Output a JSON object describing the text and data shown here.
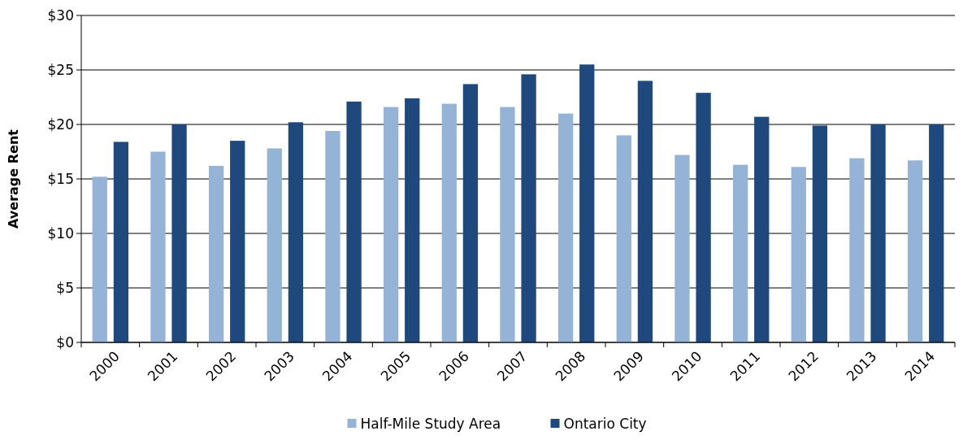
{
  "chart_data": {
    "type": "bar",
    "ylabel": "Average Rent",
    "categories": [
      "2000",
      "2001",
      "2002",
      "2003",
      "2004",
      "2005",
      "2006",
      "2007",
      "2008",
      "2009",
      "2010",
      "2011",
      "2012",
      "2013",
      "2014"
    ],
    "series": [
      {
        "name": "Half-Mile Study Area",
        "color": "#95b3d7",
        "values": [
          15.2,
          17.5,
          16.2,
          17.8,
          19.4,
          21.6,
          21.9,
          21.6,
          21.0,
          19.0,
          17.2,
          16.3,
          16.1,
          16.9,
          16.7
        ]
      },
      {
        "name": "Ontario City",
        "color": "#1f497d",
        "values": [
          18.4,
          20.0,
          18.5,
          20.2,
          22.1,
          22.4,
          23.7,
          24.6,
          25.5,
          24.0,
          22.9,
          20.7,
          19.9,
          20.0,
          20.0
        ]
      }
    ],
    "ylim": [
      0,
      30
    ],
    "yticks": [
      {
        "value": 0,
        "label": "$0"
      },
      {
        "value": 5,
        "label": "$5"
      },
      {
        "value": 10,
        "label": "$10"
      },
      {
        "value": 15,
        "label": "$15"
      },
      {
        "value": 20,
        "label": "$20"
      },
      {
        "value": 25,
        "label": "$25"
      },
      {
        "value": 30,
        "label": "$30"
      }
    ],
    "grid": "y",
    "legend": "bottom"
  }
}
